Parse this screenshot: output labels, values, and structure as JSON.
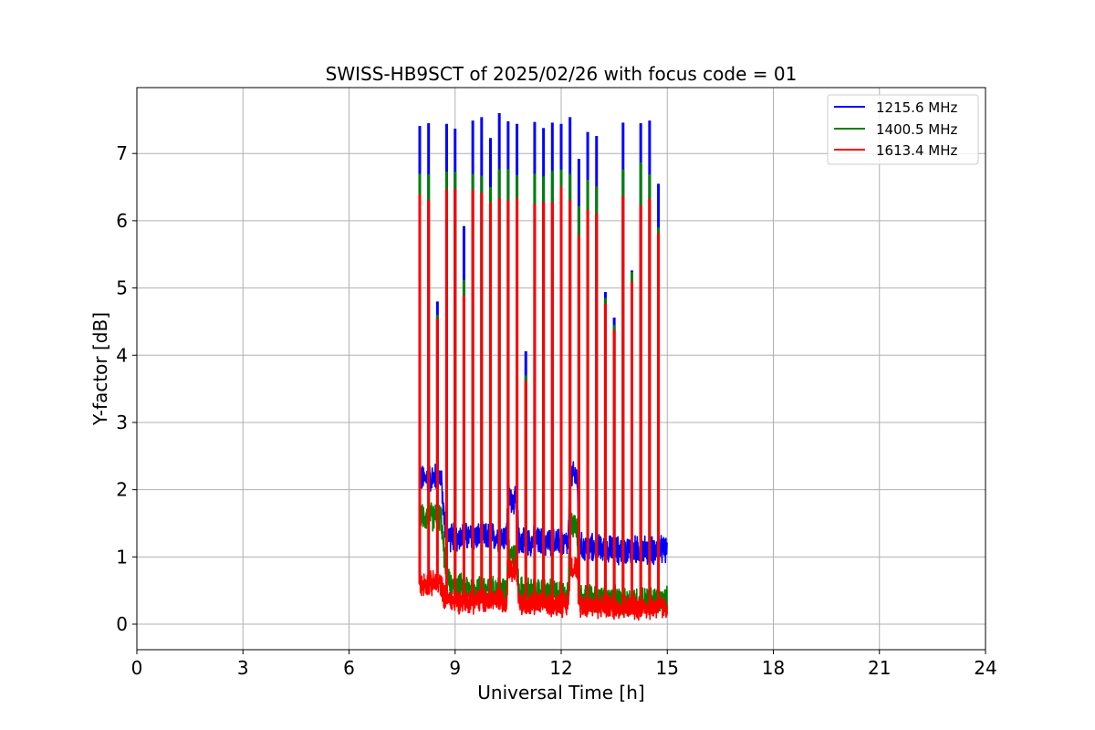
{
  "chart_data": {
    "type": "line",
    "title": "SWISS-HB9SCT of 2025/02/26 with focus code = 01",
    "xlabel": "Universal Time [h]",
    "ylabel": "Y-factor [dB]",
    "xlim": [
      0,
      24
    ],
    "ylim": [
      -0.38,
      7.98
    ],
    "xticks": [
      0,
      3,
      6,
      9,
      12,
      15,
      18,
      21,
      24
    ],
    "yticks": [
      0,
      1,
      2,
      3,
      4,
      5,
      6,
      7
    ],
    "grid": true,
    "legend_position": "top-right",
    "series": [
      {
        "name": "1215.6 MHz",
        "color": "#0000ff"
      },
      {
        "name": "1400.5 MHz",
        "color": "#008000"
      },
      {
        "name": "1613.4 MHz",
        "color": "#ff0000"
      }
    ],
    "baseline_note": "quiet level per series between spikes, [time_h, blue, green, red]",
    "baseline": [
      [
        8.0,
        2.15,
        1.6,
        0.6
      ],
      [
        8.6,
        2.2,
        1.6,
        0.6
      ],
      [
        8.7,
        1.5,
        1.0,
        0.4
      ],
      [
        8.85,
        1.3,
        0.55,
        0.35
      ],
      [
        10.45,
        1.3,
        0.5,
        0.35
      ],
      [
        10.5,
        1.9,
        1.1,
        0.85
      ],
      [
        10.75,
        1.8,
        1.0,
        0.8
      ],
      [
        10.8,
        1.25,
        0.5,
        0.3
      ],
      [
        12.2,
        1.2,
        0.45,
        0.3
      ],
      [
        12.25,
        2.2,
        1.5,
        0.85
      ],
      [
        12.45,
        2.2,
        1.5,
        0.85
      ],
      [
        12.5,
        1.15,
        0.4,
        0.3
      ],
      [
        13.5,
        1.1,
        0.35,
        0.25
      ],
      [
        15.0,
        1.1,
        0.35,
        0.25
      ]
    ],
    "noise_amplitude": [
      0.35,
      0.35,
      0.3
    ],
    "spikes": [
      {
        "t": 8.0,
        "peaks": [
          7.41,
          6.7,
          6.39
        ]
      },
      {
        "t": 8.25,
        "peaks": [
          7.45,
          6.69,
          6.31
        ]
      },
      {
        "t": 8.5,
        "peaks": [
          4.8,
          4.6,
          4.55
        ]
      },
      {
        "t": 8.76,
        "peaks": [
          7.44,
          6.73,
          6.47
        ]
      },
      {
        "t": 9.0,
        "peaks": [
          7.37,
          6.73,
          6.47
        ]
      },
      {
        "t": 9.25,
        "peaks": [
          5.92,
          5.12,
          4.89
        ]
      },
      {
        "t": 9.5,
        "peaks": [
          7.49,
          6.7,
          6.46
        ]
      },
      {
        "t": 9.75,
        "peaks": [
          7.54,
          6.67,
          6.42
        ]
      },
      {
        "t": 10.0,
        "peaks": [
          7.23,
          6.5,
          6.27
        ]
      },
      {
        "t": 10.25,
        "peaks": [
          7.6,
          6.77,
          6.34
        ]
      },
      {
        "t": 10.5,
        "peaks": [
          7.48,
          6.77,
          6.31
        ]
      },
      {
        "t": 10.75,
        "peaks": [
          7.44,
          6.68,
          6.34
        ]
      },
      {
        "t": 11.0,
        "peaks": [
          4.06,
          3.7,
          3.62
        ]
      },
      {
        "t": 11.25,
        "peaks": [
          7.47,
          6.7,
          6.25
        ]
      },
      {
        "t": 11.5,
        "peaks": [
          7.38,
          6.66,
          6.28
        ]
      },
      {
        "t": 11.75,
        "peaks": [
          7.46,
          6.74,
          6.28
        ]
      },
      {
        "t": 12.0,
        "peaks": [
          7.44,
          6.76,
          6.5
        ]
      },
      {
        "t": 12.25,
        "peaks": [
          7.54,
          6.7,
          6.31
        ]
      },
      {
        "t": 12.5,
        "peaks": [
          6.92,
          6.22,
          5.78
        ]
      },
      {
        "t": 12.75,
        "peaks": [
          7.32,
          6.61,
          6.17
        ]
      },
      {
        "t": 13.0,
        "peaks": [
          7.26,
          6.51,
          6.11
        ]
      },
      {
        "t": 13.25,
        "peaks": [
          4.94,
          4.85,
          4.77
        ]
      },
      {
        "t": 13.5,
        "peaks": [
          4.56,
          4.45,
          4.38
        ]
      },
      {
        "t": 13.75,
        "peaks": [
          7.46,
          6.76,
          6.37
        ]
      },
      {
        "t": 14.0,
        "peaks": [
          5.26,
          5.24,
          5.1
        ]
      },
      {
        "t": 14.25,
        "peaks": [
          7.45,
          6.87,
          6.23
        ]
      },
      {
        "t": 14.5,
        "peaks": [
          7.49,
          6.69,
          6.33
        ]
      },
      {
        "t": 14.75,
        "peaks": [
          6.55,
          5.9,
          5.82
        ]
      }
    ]
  }
}
